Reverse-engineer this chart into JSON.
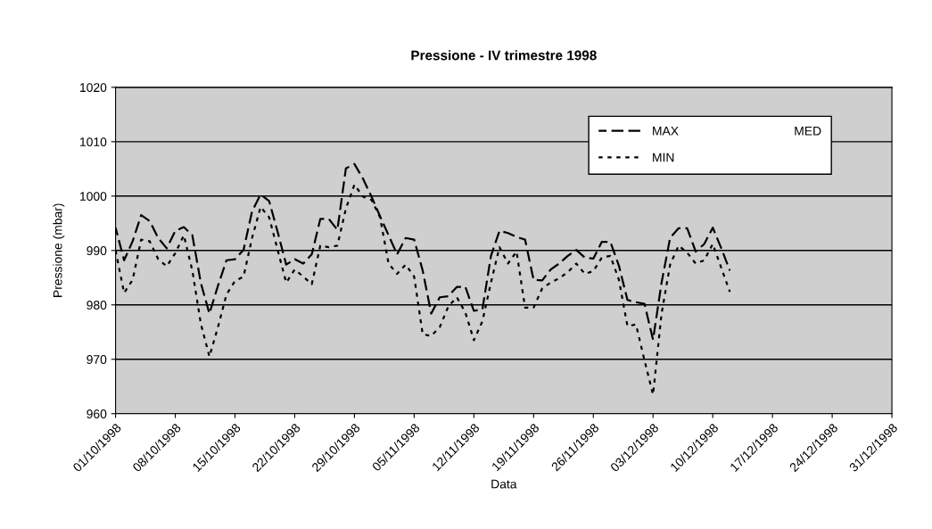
{
  "chart_data": {
    "type": "line",
    "title": "Pressione - IV trimestre 1998",
    "xlabel": "Data",
    "ylabel": "Pressione (mbar)",
    "x": [
      "1998-10-01",
      "1998-10-02",
      "1998-10-03",
      "1998-10-04",
      "1998-10-05",
      "1998-10-06",
      "1998-10-07",
      "1998-10-08",
      "1998-10-09",
      "1998-10-10",
      "1998-10-11",
      "1998-10-12",
      "1998-10-13",
      "1998-10-14",
      "1998-10-15",
      "1998-10-16",
      "1998-10-17",
      "1998-10-18",
      "1998-10-19",
      "1998-10-20",
      "1998-10-21",
      "1998-10-22",
      "1998-10-23",
      "1998-10-24",
      "1998-10-25",
      "1998-10-26",
      "1998-10-27",
      "1998-10-28",
      "1998-10-29",
      "1998-10-30",
      "1998-10-31",
      "1998-11-01",
      "1998-11-02",
      "1998-11-03",
      "1998-11-04",
      "1998-11-05",
      "1998-11-06",
      "1998-11-07",
      "1998-11-08",
      "1998-11-09",
      "1998-11-10",
      "1998-11-11",
      "1998-11-12",
      "1998-11-13",
      "1998-11-14",
      "1998-11-15",
      "1998-11-16",
      "1998-11-17",
      "1998-11-18",
      "1998-11-19",
      "1998-11-20",
      "1998-11-21",
      "1998-11-22",
      "1998-11-23",
      "1998-11-24",
      "1998-11-25",
      "1998-11-26",
      "1998-11-27",
      "1998-11-28",
      "1998-11-29",
      "1998-11-30",
      "1998-12-01",
      "1998-12-02",
      "1998-12-03",
      "1998-12-04",
      "1998-12-05",
      "1998-12-06",
      "1998-12-07",
      "1998-12-08",
      "1998-12-09",
      "1998-12-10",
      "1998-12-11",
      "1998-12-12"
    ],
    "series": [
      {
        "name": "MAX",
        "color": "#000000",
        "line_style": "dashed",
        "values": [
          994.2,
          988.2,
          991.7,
          996.5,
          995.4,
          992.3,
          990.4,
          993.6,
          994.3,
          992.8,
          984.0,
          978.4,
          983.5,
          988.2,
          988.4,
          990.1,
          997.2,
          1000.3,
          999.1,
          993.4,
          987.4,
          988.4,
          987.6,
          989.3,
          995.8,
          995.8,
          993.8,
          1005.1,
          1005.9,
          1003.2,
          999.9,
          996.3,
          992.8,
          989.3,
          992.3,
          992.0,
          986.3,
          978.4,
          981.4,
          981.6,
          983.3,
          983.3,
          978.9,
          979.2,
          989.0,
          993.6,
          993.2,
          992.5,
          992.0,
          984.6,
          984.5,
          986.5,
          987.6,
          989.0,
          990.1,
          988.7,
          988.5,
          991.6,
          991.6,
          987.2,
          980.9,
          980.5,
          980.2,
          973.6,
          984.1,
          992.3,
          994.1,
          994.1,
          989.8,
          991.2,
          994.2,
          990.4,
          986.3
        ]
      },
      {
        "name": "MED",
        "line_style": "solid",
        "values": [
          null,
          null,
          null,
          null,
          null,
          null,
          null,
          null,
          null,
          null,
          null,
          null,
          null,
          null,
          null,
          null,
          null,
          null,
          null,
          null,
          null,
          null,
          null,
          null,
          null,
          null,
          null,
          null,
          null,
          null,
          null,
          null,
          null,
          null,
          null,
          null,
          null,
          null,
          null,
          null,
          null,
          null,
          null,
          null,
          null,
          null,
          null,
          null,
          null,
          null,
          null,
          null,
          null,
          null,
          null,
          null,
          null,
          null,
          null,
          null,
          null,
          null,
          null,
          null,
          null,
          null,
          null,
          null,
          null,
          null,
          null,
          null,
          null
        ]
      },
      {
        "name": "MIN",
        "color": "#000000",
        "line_style": "dotted",
        "values": [
          990.0,
          982.2,
          984.6,
          992.0,
          991.7,
          988.4,
          987.1,
          989.5,
          992.8,
          986.3,
          976.5,
          970.5,
          975.9,
          981.9,
          984.4,
          985.2,
          992.3,
          998.0,
          996.1,
          990.1,
          984.1,
          986.5,
          985.2,
          983.8,
          990.9,
          990.6,
          990.9,
          997.7,
          1002.1,
          999.9,
          999.3,
          996.1,
          987.6,
          985.7,
          987.4,
          985.2,
          974.6,
          974.3,
          975.9,
          979.7,
          981.4,
          978.6,
          973.5,
          977.0,
          984.1,
          990.6,
          987.6,
          989.8,
          979.5,
          979.5,
          983.0,
          984.1,
          984.9,
          986.0,
          987.6,
          985.7,
          986.2,
          988.7,
          989.0,
          984.6,
          976.1,
          976.4,
          969.8,
          963.5,
          978.4,
          987.4,
          990.9,
          989.6,
          987.6,
          988.2,
          991.2,
          986.8,
          982.4
        ]
      }
    ],
    "xlim": [
      "1998-10-01",
      "1998-12-31"
    ],
    "xticks": [
      {
        "value": "1998-10-01",
        "label": "01/10/1998"
      },
      {
        "value": "1998-10-08",
        "label": "08/10/1998"
      },
      {
        "value": "1998-10-15",
        "label": "15/10/1998"
      },
      {
        "value": "1998-10-22",
        "label": "22/10/1998"
      },
      {
        "value": "1998-10-29",
        "label": "29/10/1998"
      },
      {
        "value": "1998-11-05",
        "label": "05/11/1998"
      },
      {
        "value": "1998-11-12",
        "label": "12/11/1998"
      },
      {
        "value": "1998-11-19",
        "label": "19/11/1998"
      },
      {
        "value": "1998-11-26",
        "label": "26/11/1998"
      },
      {
        "value": "1998-12-03",
        "label": "03/12/1998"
      },
      {
        "value": "1998-12-10",
        "label": "10/12/1998"
      },
      {
        "value": "1998-12-17",
        "label": "17/12/1998"
      },
      {
        "value": "1998-12-24",
        "label": "24/12/1998"
      },
      {
        "value": "1998-12-31",
        "label": "31/12/1998"
      }
    ],
    "ylim": [
      960,
      1020
    ],
    "yticks": [
      960,
      970,
      980,
      990,
      1000,
      1010,
      1020
    ],
    "grid": "y",
    "legend": "top right",
    "marker": "none"
  }
}
